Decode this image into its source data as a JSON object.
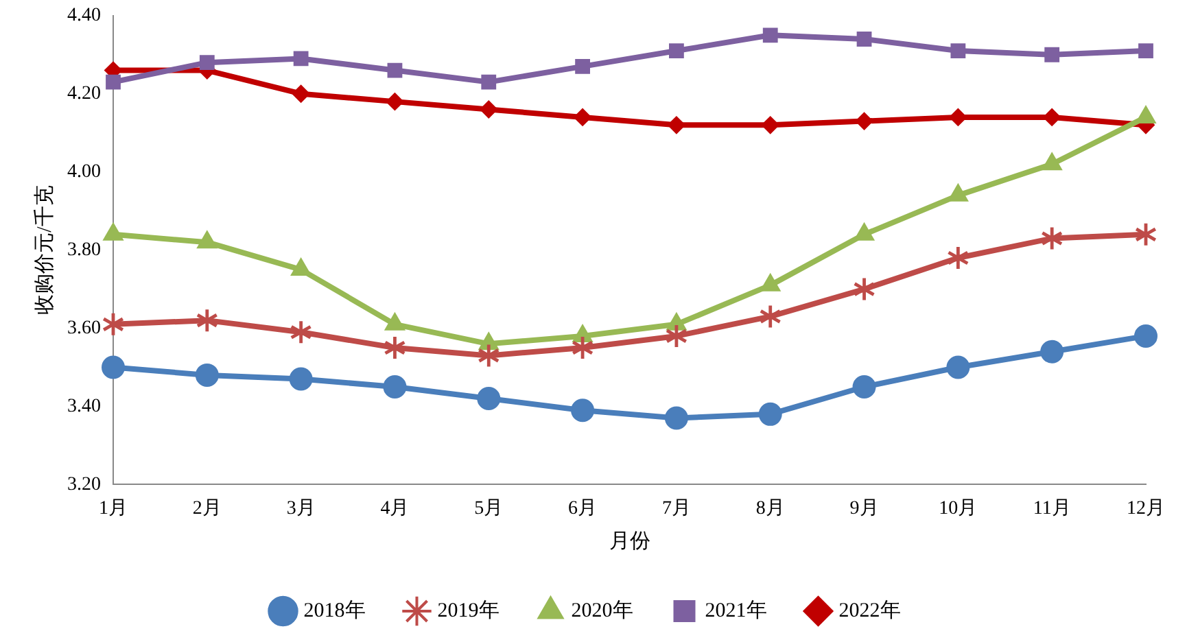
{
  "chart_data": {
    "type": "line",
    "xlabel": "月份",
    "ylabel": "收购价元/千克",
    "categories": [
      "1月",
      "2月",
      "3月",
      "4月",
      "5月",
      "6月",
      "7月",
      "8月",
      "9月",
      "10月",
      "11月",
      "12月"
    ],
    "ylim": [
      3.2,
      4.4
    ],
    "yticks": [
      {
        "value": 3.2,
        "label": "3.20"
      },
      {
        "value": 3.4,
        "label": "3.40"
      },
      {
        "value": 3.6,
        "label": "3.60"
      },
      {
        "value": 3.8,
        "label": "3.80"
      },
      {
        "value": 4.0,
        "label": "4.00"
      },
      {
        "value": 4.2,
        "label": "4.20"
      },
      {
        "value": 4.4,
        "label": "4.40"
      }
    ],
    "grid": false,
    "legend": "bottom",
    "line_style": "solid",
    "series": [
      {
        "name": "2018年",
        "color": "#4a7ebb",
        "marker": "circle",
        "values": [
          3.5,
          3.48,
          3.47,
          3.45,
          3.42,
          3.39,
          3.37,
          3.38,
          3.45,
          3.5,
          3.54,
          3.58
        ]
      },
      {
        "name": "2019年",
        "color": "#be4b48",
        "marker": "star",
        "values": [
          3.61,
          3.62,
          3.59,
          3.55,
          3.53,
          3.55,
          3.58,
          3.63,
          3.7,
          3.78,
          3.83,
          3.84
        ]
      },
      {
        "name": "2020年",
        "color": "#98b954",
        "marker": "triangle",
        "values": [
          3.84,
          3.82,
          3.75,
          3.61,
          3.56,
          3.58,
          3.61,
          3.71,
          3.84,
          3.94,
          4.02,
          4.14
        ]
      },
      {
        "name": "2021年",
        "color": "#7d60a0",
        "marker": "square",
        "values": [
          4.23,
          4.28,
          4.29,
          4.26,
          4.23,
          4.27,
          4.31,
          4.35,
          4.34,
          4.31,
          4.3,
          4.31
        ]
      },
      {
        "name": "2022年",
        "color": "#c00000",
        "marker": "diamond",
        "values": [
          4.26,
          4.26,
          4.2,
          4.18,
          4.16,
          4.14,
          4.12,
          4.12,
          4.13,
          4.14,
          4.14,
          4.12
        ]
      }
    ]
  }
}
